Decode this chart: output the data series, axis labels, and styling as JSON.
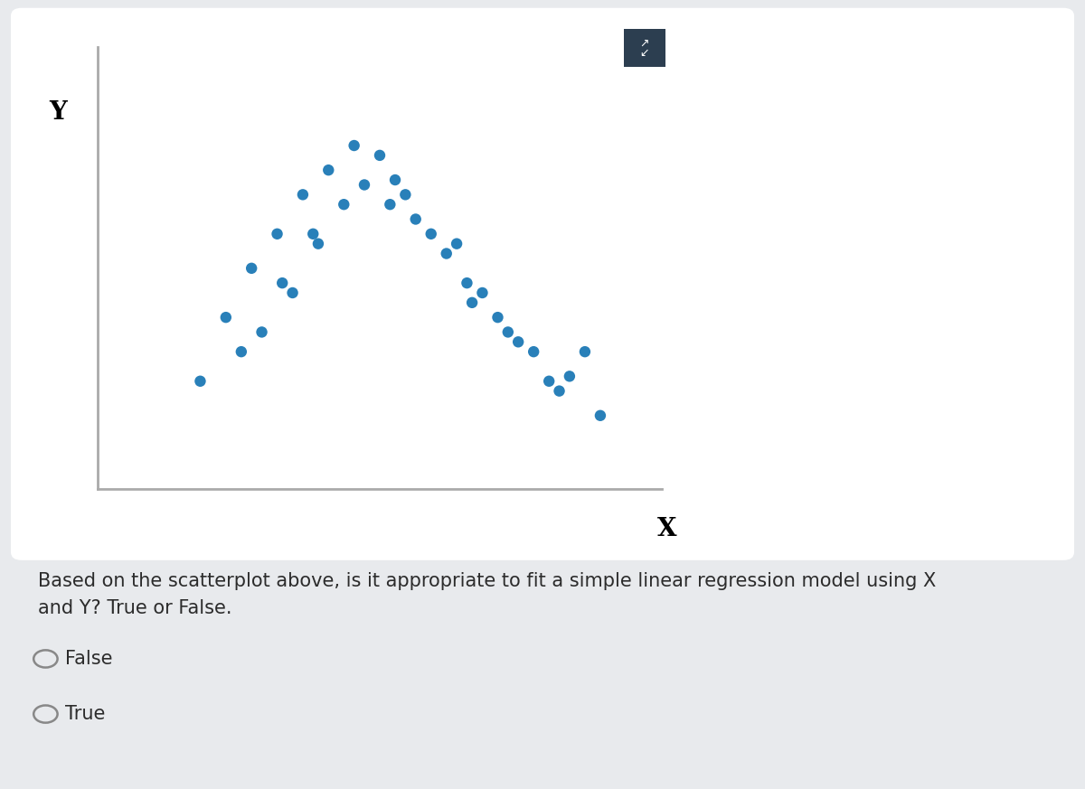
{
  "scatter_x": [
    2.0,
    2.5,
    3.0,
    3.2,
    3.5,
    3.8,
    4.0,
    4.2,
    4.5,
    4.8,
    5.0,
    5.2,
    5.5,
    5.7,
    5.8,
    6.0,
    6.2,
    6.5,
    6.8,
    7.0,
    7.2,
    7.5,
    7.8,
    8.0,
    8.2,
    8.5,
    8.8,
    9.0,
    9.2,
    9.5,
    9.8,
    2.8,
    3.6,
    4.3,
    7.3
  ],
  "scatter_y": [
    2.2,
    3.5,
    4.5,
    3.2,
    5.2,
    4.0,
    6.0,
    5.2,
    6.5,
    5.8,
    7.0,
    6.2,
    6.8,
    5.8,
    6.3,
    6.0,
    5.5,
    5.2,
    4.8,
    5.0,
    4.2,
    4.0,
    3.5,
    3.2,
    3.0,
    2.8,
    2.2,
    2.0,
    2.3,
    2.8,
    1.5,
    2.8,
    4.2,
    5.0,
    3.8
  ],
  "dot_color": "#2980b9",
  "dot_size": 80,
  "axis_color": "#aaaaaa",
  "plot_bg": "#ffffff",
  "fig_bg": "#e8eaed",
  "card_bg": "#ffffff",
  "question_text": "Based on the scatterplot above, is it appropriate to fit a simple linear regression model using X\nand Y? True or False.",
  "option1": "False",
  "option2": "True",
  "text_color": "#2c2c2c",
  "font_size_question": 15,
  "font_size_options": 15,
  "icon_bg": "#2c3e50",
  "xlim": [
    0,
    11
  ],
  "ylim": [
    0,
    9
  ]
}
